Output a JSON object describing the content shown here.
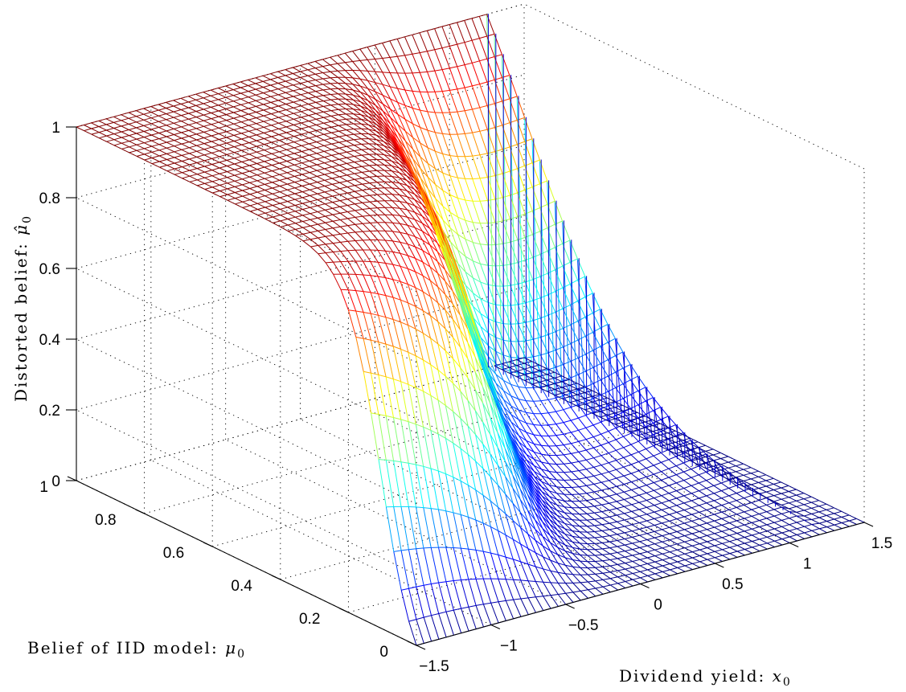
{
  "chart_data": {
    "type": "surface",
    "xlabel_text": "Dividend yield: ",
    "xlabel_var": "x",
    "xlabel_sub": "0",
    "ylabel_text": "Belief of IID model: ",
    "ylabel_var": "μ",
    "ylabel_sub": "0",
    "zlabel_text": "Distorted belief: ",
    "zlabel_var": "μ̂",
    "zlabel_sub": "0",
    "x_ticks": [
      "−1.5",
      "−1",
      "−0.5",
      "0",
      "0.5",
      "1",
      "1.5"
    ],
    "x_tick_values": [
      -1.5,
      -1,
      -0.5,
      0,
      0.5,
      1,
      1.5
    ],
    "y_ticks": [
      "0",
      "0.2",
      "0.4",
      "0.6",
      "0.8",
      "1"
    ],
    "y_tick_values": [
      0,
      0.2,
      0.4,
      0.6,
      0.8,
      1
    ],
    "z_ticks": [
      "0",
      "0.2",
      "0.4",
      "0.6",
      "0.8",
      "1"
    ],
    "z_tick_values": [
      0,
      0.2,
      0.4,
      0.6,
      0.8,
      1
    ],
    "xlim": [
      -1.5,
      1.5
    ],
    "ylim": [
      0,
      1
    ],
    "zlim": [
      0,
      1
    ],
    "grid": true,
    "colormap": "jet",
    "samples": {
      "x_at_mu_0": [
        -1.5,
        -1.0,
        -0.5,
        0,
        0.5,
        1.0,
        1.5
      ],
      "z_at_mu_0": [
        0.0,
        0.0,
        0.0,
        0.0,
        0.0,
        0.0,
        0.0
      ],
      "x_at_mu_1": [
        -1.5,
        -1.0,
        -0.5,
        0,
        0.5,
        1.0,
        1.5
      ],
      "z_at_mu_1": [
        1.0,
        1.0,
        1.0,
        1.0,
        1.0,
        1.0,
        1.0
      ],
      "x_at_mu_0_5": [
        -1.5,
        -1.0,
        -0.5,
        0,
        0.5,
        1.0,
        1.5
      ],
      "z_at_mu_0_5": [
        0.74,
        0.49,
        0.33,
        0.28,
        0.36,
        0.57,
        0.0
      ]
    }
  }
}
